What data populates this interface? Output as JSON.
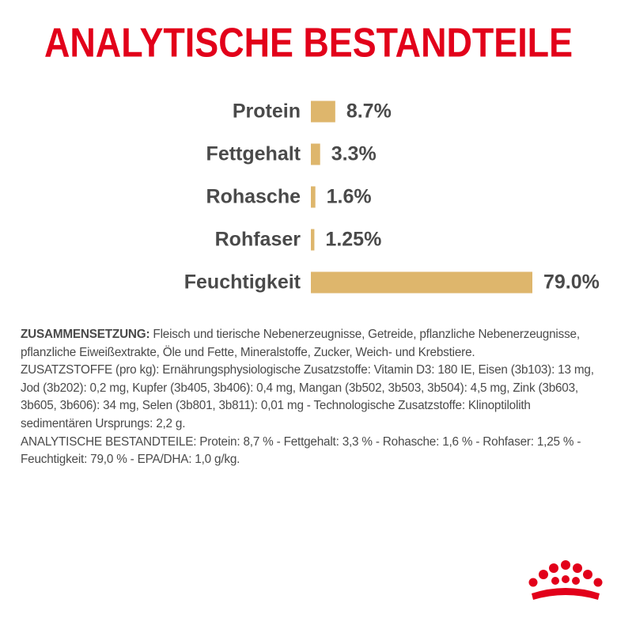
{
  "chart_data": {
    "type": "bar",
    "orientation": "horizontal",
    "title": "ANALYTISCHE BESTANDTEILE",
    "categories": [
      "Protein",
      "Fettgehalt",
      "Rohasche",
      "Rohfaser",
      "Feuchtigkeit"
    ],
    "values": [
      8.7,
      3.3,
      1.6,
      1.25,
      79.0
    ],
    "value_labels": [
      "8.7%",
      "3.3%",
      "1.6%",
      "1.25%",
      "79.0%"
    ],
    "color": "#deb66c"
  },
  "composition": {
    "label": "ZUSAMMENSETZUNG:",
    "text": "Fleisch und tierische Nebenerzeugnisse, Getreide, pflanzliche Nebenerzeugnisse, pflanzliche Eiweißextrakte, Öle und Fette, Mineralstoffe, Zucker, Weich- und Krebstiere.",
    "additives": "ZUSATZSTOFFE (pro kg): Ernährungsphysiologische Zusatzstoffe: Vitamin D3: 180 IE, Eisen (3b103): 13 mg, Jod (3b202): 0,2 mg, Kupfer (3b405, 3b406): 0,4 mg, Mangan (3b502, 3b503, 3b504): 4,5 mg, Zink (3b603, 3b605, 3b606): 34 mg, Selen (3b801, 3b811): 0,01 mg - Technologische Zusatzstoffe: Klinoptilolith sedimentären Ursprungs: 2,2 g.",
    "analytical": "ANALYTISCHE BESTANDTEILE: Protein: 8,7 % - Fettgehalt: 3,3 % - Rohasche: 1,6 % - Rohfaser: 1,25 % - Feuchtigkeit: 79,0 % - EPA/DHA: 1,0 g/kg."
  }
}
